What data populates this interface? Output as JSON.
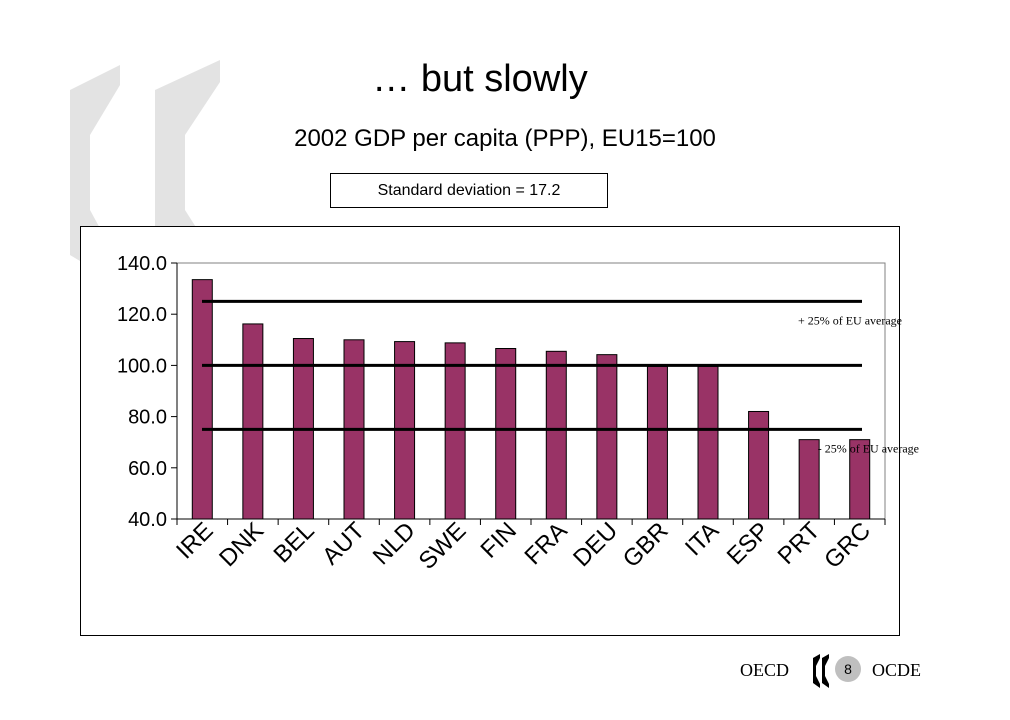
{
  "slide": {
    "title": "… but slowly",
    "subtitle": "2002 GDP per capita (PPP), EU15=100",
    "sd_label": "Standard deviation = 17.2",
    "page_number": "8",
    "logo_left": "OECD",
    "logo_right": "OCDE"
  },
  "colors": {
    "bar": "#993366",
    "bar_outline": "#000000",
    "watermark": "#e3e3e3",
    "page_badge": "#bfbfbf"
  },
  "chart_data": {
    "type": "bar",
    "title": "",
    "xlabel": "",
    "ylabel": "",
    "categories": [
      "IRE",
      "DNK",
      "BEL",
      "AUT",
      "NLD",
      "SWE",
      "FIN",
      "FRA",
      "DEU",
      "GBR",
      "ITA",
      "ESP",
      "PRT",
      "GRC"
    ],
    "values": [
      133.5,
      116.2,
      110.5,
      110.0,
      109.3,
      108.8,
      106.6,
      105.5,
      104.2,
      99.6,
      99.6,
      82.0,
      71.0,
      71.0
    ],
    "ylim": [
      40,
      140
    ],
    "yticks": [
      "40.0",
      "60.0",
      "80.0",
      "100.0",
      "120.0",
      "140.0"
    ],
    "grid": false,
    "reference_lines": [
      {
        "y": 125,
        "label": "+ 25% of EU average"
      },
      {
        "y": 100,
        "label": ""
      },
      {
        "y": 75,
        "label": "- 25% of EU average"
      }
    ]
  }
}
